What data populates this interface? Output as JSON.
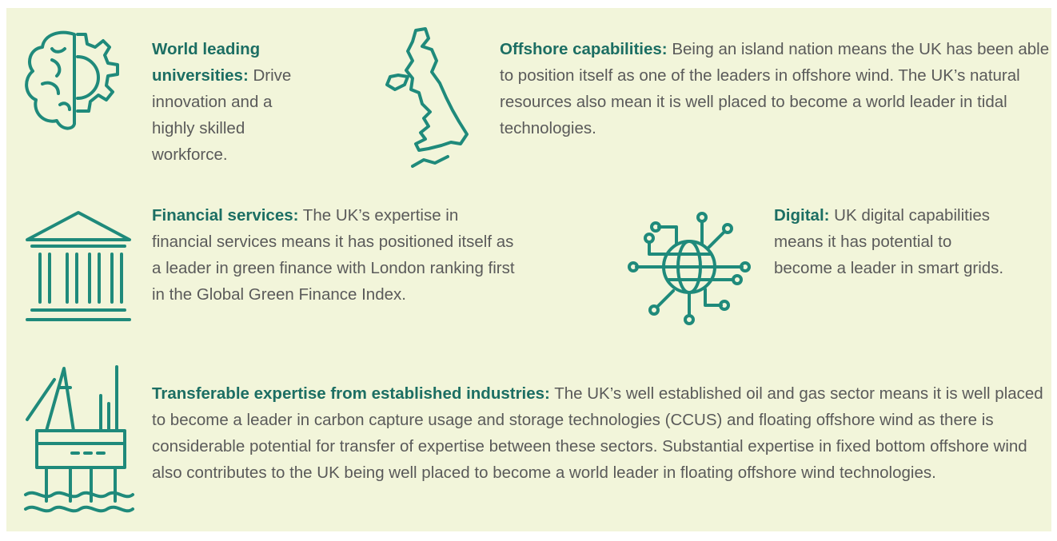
{
  "items": [
    {
      "heading": "World leading universities:",
      "text": "Drive innovation and a highly skilled workforce."
    },
    {
      "heading": "Offshore capabilities:",
      "text": "Being an island nation means the UK has been able to position itself as one of the leaders in offshore wind. The UK’s natural resources also mean it is well placed to become a world leader in tidal technologies."
    },
    {
      "heading": "Financial services:",
      "text": "The UK’s expertise in financial services means it has positioned itself as a leader in green finance with London ranking first in the Global Green Finance Index."
    },
    {
      "heading": "Digital:",
      "text": "UK digital capabilities means it has potential to become a leader in smart grids."
    },
    {
      "heading": "Transferable expertise from established industries:",
      "text": "The UK’s well established oil and gas sector means it is well placed to become a leader in carbon capture usage and storage technologies (CCUS) and floating offshore wind as there is considerable potential for transfer of expertise between these sectors. Substantial expertise in fixed bottom offshore wind also contributes to the UK being well placed to become a world leader in floating offshore wind technologies."
    }
  ]
}
